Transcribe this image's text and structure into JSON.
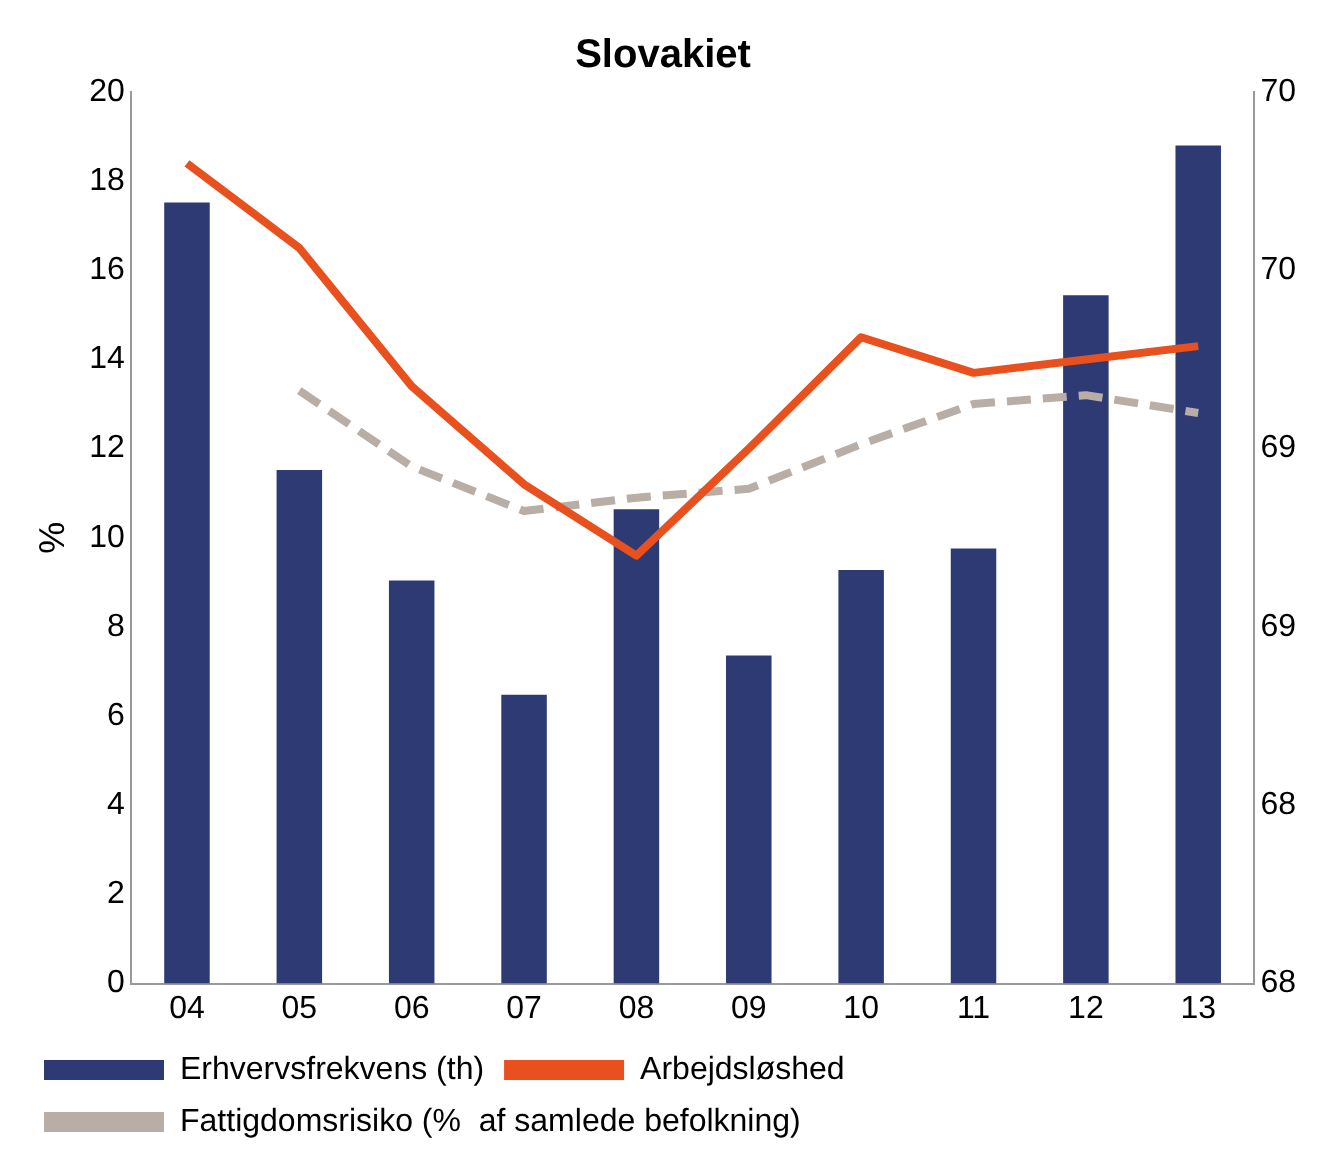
{
  "chart_data": {
    "type": "bar",
    "title": "Slovakiet",
    "ylabel": "%",
    "categories": [
      "04",
      "05",
      "06",
      "07",
      "08",
      "09",
      "10",
      "11",
      "12",
      "13"
    ],
    "series": [
      {
        "name": "Erhvervsfrekvens (th)",
        "axis": "y2",
        "color": "#2e3a74",
        "values": [
          69.69,
          68.94,
          68.63,
          68.31,
          68.83,
          68.42,
          68.66,
          68.72,
          69.43,
          69.85
        ]
      },
      {
        "name": "Arbejdsløshed",
        "type": "line",
        "color": "#e8501e",
        "line_style": "solid",
        "values": [
          18.4,
          16.5,
          13.4,
          11.2,
          9.6,
          12.0,
          14.5,
          13.7,
          14.0,
          14.3
        ]
      },
      {
        "name": "Fattigdomsrisiko (%  af samlede befolkning)",
        "type": "line",
        "color": "#b8aea6",
        "line_style": "dashed",
        "values": [
          null,
          13.3,
          11.6,
          10.6,
          10.9,
          11.1,
          12.1,
          13.0,
          13.2,
          12.8
        ]
      }
    ],
    "ylim": [
      0,
      20
    ],
    "yticks": [
      0,
      2,
      4,
      6,
      8,
      10,
      12,
      14,
      16,
      18,
      20
    ],
    "y2lim": [
      67.5,
      70
    ],
    "y2ticks": [
      {
        "value": 67.5,
        "label": "68"
      },
      {
        "value": 68,
        "label": "68"
      },
      {
        "value": 68.5,
        "label": "69"
      },
      {
        "value": 69,
        "label": "69"
      },
      {
        "value": 69.5,
        "label": "70"
      },
      {
        "value": 70,
        "label": "70"
      }
    ],
    "grid": false,
    "legend": "bottom",
    "marker": "none"
  }
}
